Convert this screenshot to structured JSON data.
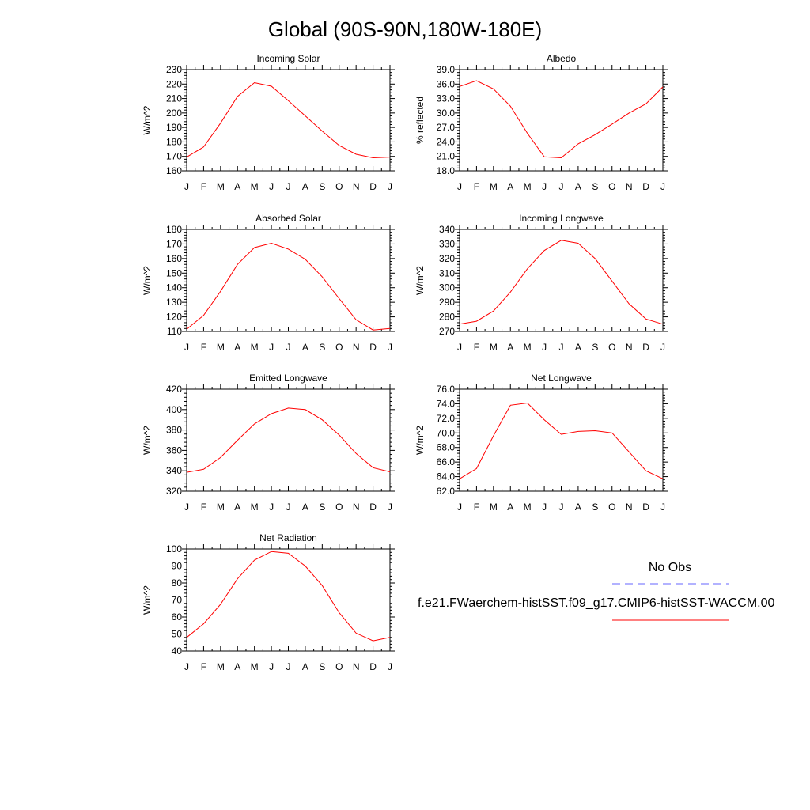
{
  "figure": {
    "title": "Global (90S-90N,180W-180E)"
  },
  "months": [
    "J",
    "F",
    "M",
    "A",
    "M",
    "J",
    "J",
    "A",
    "S",
    "O",
    "N",
    "D",
    "J"
  ],
  "legend": {
    "obs_label": "No Obs",
    "obs_color": "#6666ff",
    "model_label": "f.e21.FWaerchem-histSST.f09_g17.CMIP6-histSST-WACCM.00",
    "model_color": "#ff0000"
  },
  "chart_data": [
    {
      "type": "line",
      "title": "Incoming Solar",
      "ylabel": "W/m^2",
      "ylim": [
        160,
        230
      ],
      "yticks": [
        160,
        170,
        180,
        190,
        200,
        210,
        220,
        230
      ],
      "ytick_labels": [
        "160",
        "170",
        "180",
        "190",
        "200",
        "210",
        "220",
        "230"
      ],
      "series": [
        {
          "name": "f.e21.FWaerchem-histSST.f09_g17.CMIP6-histSST-WACCM.00",
          "values": [
            169.5,
            176.5,
            193,
            211.5,
            221,
            218.5,
            208.5,
            198,
            187.5,
            177.5,
            171.5,
            169,
            169.5
          ]
        }
      ]
    },
    {
      "type": "line",
      "title": "Albedo",
      "ylabel": "% reflected",
      "ylim": [
        18,
        39
      ],
      "yticks": [
        18,
        21,
        24,
        27,
        30,
        33,
        36,
        39
      ],
      "ytick_labels": [
        "18.0",
        "21.0",
        "24.0",
        "27.0",
        "30.0",
        "33.0",
        "36.0",
        "39.0"
      ],
      "series": [
        {
          "name": "f.e21.FWaerchem-histSST.f09_g17.CMIP6-histSST-WACCM.00",
          "values": [
            35.5,
            36.7,
            35,
            31.4,
            25.8,
            20.9,
            20.7,
            23.6,
            25.5,
            27.7,
            30,
            31.9,
            35.4
          ]
        }
      ]
    },
    {
      "type": "line",
      "title": "Absorbed Solar",
      "ylabel": "W/m^2",
      "ylim": [
        110,
        180
      ],
      "yticks": [
        110,
        120,
        130,
        140,
        150,
        160,
        170,
        180
      ],
      "ytick_labels": [
        "110",
        "120",
        "130",
        "140",
        "150",
        "160",
        "170",
        "180"
      ],
      "series": [
        {
          "name": "f.e21.FWaerchem-histSST.f09_g17.CMIP6-histSST-WACCM.00",
          "values": [
            111.5,
            121,
            137.5,
            156,
            167.5,
            170.5,
            166.5,
            159.5,
            147.5,
            132.5,
            118,
            111,
            112
          ]
        }
      ]
    },
    {
      "type": "line",
      "title": "Incoming Longwave",
      "ylabel": "W/m^2",
      "ylim": [
        270,
        340
      ],
      "yticks": [
        270,
        280,
        290,
        300,
        310,
        320,
        330,
        340
      ],
      "ytick_labels": [
        "270",
        "280",
        "290",
        "300",
        "310",
        "320",
        "330",
        "340"
      ],
      "series": [
        {
          "name": "f.e21.FWaerchem-histSST.f09_g17.CMIP6-histSST-WACCM.00",
          "values": [
            275,
            277,
            284,
            297,
            313,
            325.5,
            332.5,
            330.5,
            320,
            304.5,
            289,
            278.5,
            275
          ]
        }
      ]
    },
    {
      "type": "line",
      "title": "Emitted Longwave",
      "ylabel": "W/m^2",
      "ylim": [
        320,
        420
      ],
      "yticks": [
        320,
        340,
        360,
        380,
        400,
        420
      ],
      "ytick_labels": [
        "320",
        "340",
        "360",
        "380",
        "400",
        "420"
      ],
      "series": [
        {
          "name": "f.e21.FWaerchem-histSST.f09_g17.CMIP6-histSST-WACCM.00",
          "values": [
            338.5,
            341.5,
            353,
            370,
            386,
            396,
            401.5,
            400,
            390,
            375,
            357,
            343,
            339
          ]
        }
      ]
    },
    {
      "type": "line",
      "title": "Net Longwave",
      "ylabel": "W/m^2",
      "ylim": [
        62,
        76
      ],
      "yticks": [
        62,
        64,
        66,
        68,
        70,
        72,
        74,
        76
      ],
      "ytick_labels": [
        "62.0",
        "64.0",
        "66.0",
        "68.0",
        "70.0",
        "72.0",
        "74.0",
        "76.0"
      ],
      "series": [
        {
          "name": "f.e21.FWaerchem-histSST.f09_g17.CMIP6-histSST-WACCM.00",
          "values": [
            63.7,
            65.1,
            69.6,
            73.8,
            74.1,
            71.8,
            69.8,
            70.2,
            70.3,
            70,
            67.4,
            64.8,
            63.7
          ]
        }
      ]
    },
    {
      "type": "line",
      "title": "Net Radiation",
      "ylabel": "W/m^2",
      "ylim": [
        40,
        100
      ],
      "yticks": [
        40,
        50,
        60,
        70,
        80,
        90,
        100
      ],
      "ytick_labels": [
        "40",
        "50",
        "60",
        "70",
        "80",
        "90",
        "100"
      ],
      "series": [
        {
          "name": "f.e21.FWaerchem-histSST.f09_g17.CMIP6-histSST-WACCM.00",
          "values": [
            48,
            56,
            67.5,
            82.5,
            93.5,
            98.5,
            97.5,
            90,
            78.5,
            62.5,
            50.5,
            46,
            48
          ]
        }
      ]
    }
  ]
}
